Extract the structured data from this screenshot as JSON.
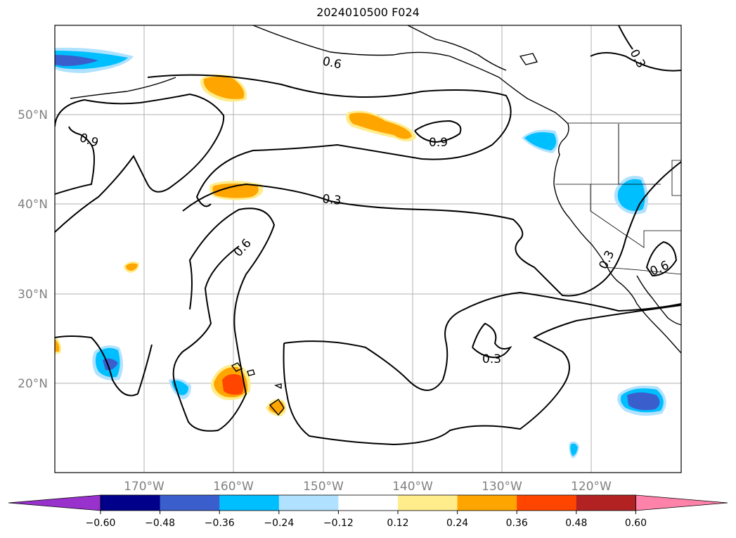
{
  "title": "2024010500 F024",
  "latitude_labels": [
    "50°N",
    "40°N",
    "30°N",
    "20°N"
  ],
  "longitude_labels": [
    "170°W",
    "160°W",
    "150°W",
    "140°W",
    "130°W",
    "120°W"
  ],
  "contour_labels": [
    "0.6",
    "0.9",
    "0.9",
    "0.3",
    "0.6",
    "0.3",
    "0.3",
    "0.6",
    "0.3"
  ],
  "colorbar": {
    "tick_labels": [
      "−0.60",
      "−0.48",
      "−0.36",
      "−0.24",
      "−0.12",
      "0.12",
      "0.24",
      "0.36",
      "0.48",
      "0.60"
    ],
    "colors": [
      "#9932cc",
      "#00008b",
      "#3a5fcd",
      "#00bfff",
      "#b0e2ff",
      "#ffffff",
      "#ffec8b",
      "#ffa500",
      "#ff4500",
      "#b22222",
      "#ff82ab"
    ]
  },
  "colors": {
    "neg_low": "#b0e2ff",
    "neg_mid": "#00bfff",
    "neg_high": "#3a5fcd",
    "pos_low": "#ffec8b",
    "pos_mid": "#ffa500",
    "pos_high": "#ff4500"
  }
}
